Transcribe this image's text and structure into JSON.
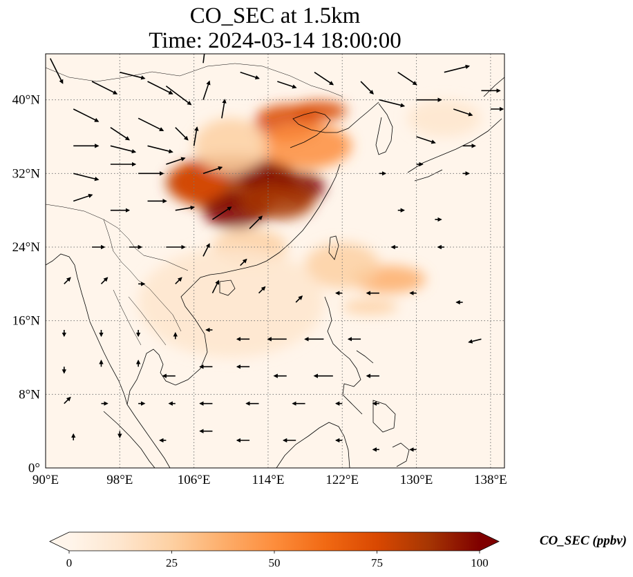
{
  "title": {
    "line1": "CO_SEC at 1.5km",
    "line2": "Time: 2024-03-14 18:00:00"
  },
  "map": {
    "lon_range": [
      90,
      139.5
    ],
    "lat_range": [
      0,
      45
    ],
    "lon_ticks": [
      {
        "value": 90,
        "label": "90°E"
      },
      {
        "value": 98,
        "label": "98°E"
      },
      {
        "value": 106,
        "label": "106°E"
      },
      {
        "value": 114,
        "label": "114°E"
      },
      {
        "value": 122,
        "label": "122°E"
      },
      {
        "value": 130,
        "label": "130°E"
      },
      {
        "value": 138,
        "label": "138°E"
      }
    ],
    "lat_ticks": [
      {
        "value": 0,
        "label": "0°"
      },
      {
        "value": 8,
        "label": "8°N"
      },
      {
        "value": 16,
        "label": "16°N"
      },
      {
        "value": 24,
        "label": "24°N"
      },
      {
        "value": 32,
        "label": "32°N"
      },
      {
        "value": 40,
        "label": "40°N"
      }
    ],
    "gridlines": "dotted",
    "field": "CO_SEC",
    "units": "ppbv"
  },
  "colorbar": {
    "title": "CO_SEC (ppbv)",
    "ticks": [
      {
        "value": 0,
        "label": "0"
      },
      {
        "value": 25,
        "label": "25"
      },
      {
        "value": 50,
        "label": "50"
      },
      {
        "value": 75,
        "label": "75"
      },
      {
        "value": 100,
        "label": "100"
      }
    ],
    "range": [
      0,
      100
    ],
    "extend": "both",
    "colors": [
      "#fff5eb",
      "#fee6ce",
      "#fdd0a2",
      "#fdae6b",
      "#fd8d3c",
      "#f16913",
      "#d94801",
      "#a63603",
      "#7f0000"
    ]
  },
  "plumes": [
    {
      "lon": 110,
      "lat": 31,
      "rx": 7,
      "ry": 3,
      "value": 90
    },
    {
      "lon": 114,
      "lat": 31.5,
      "rx": 3,
      "ry": 1.8,
      "value": 100
    },
    {
      "lon": 117.5,
      "lat": 30.5,
      "rx": 2.6,
      "ry": 1.6,
      "value": 100
    },
    {
      "lon": 110.5,
      "lat": 28,
      "rx": 3.5,
      "ry": 2,
      "value": 95
    },
    {
      "lon": 115,
      "lat": 29,
      "rx": 4,
      "ry": 2,
      "value": 85
    },
    {
      "lon": 106.5,
      "lat": 31,
      "rx": 3,
      "ry": 2.2,
      "value": 75
    },
    {
      "lon": 116,
      "lat": 37.5,
      "rx": 3.5,
      "ry": 2,
      "value": 80
    },
    {
      "lon": 119.5,
      "lat": 38.8,
      "rx": 3,
      "ry": 1.1,
      "value": 75
    },
    {
      "lon": 118,
      "lat": 35,
      "rx": 5,
      "ry": 2.5,
      "value": 45
    },
    {
      "lon": 110,
      "lat": 35,
      "rx": 4,
      "ry": 3,
      "value": 30
    },
    {
      "lon": 112,
      "lat": 24,
      "rx": 4,
      "ry": 2,
      "value": 30
    },
    {
      "lon": 127,
      "lat": 20.5,
      "rx": 4,
      "ry": 1.5,
      "value": 40
    },
    {
      "lon": 122,
      "lat": 22,
      "rx": 4,
      "ry": 2.5,
      "value": 22
    },
    {
      "lon": 125,
      "lat": 17.5,
      "rx": 3,
      "ry": 0.8,
      "value": 30
    },
    {
      "lon": 133,
      "lat": 38,
      "rx": 4,
      "ry": 2,
      "value": 12
    },
    {
      "lon": 110,
      "lat": 18,
      "rx": 10,
      "ry": 6,
      "value": 8
    }
  ],
  "wind_vectors": [
    {
      "lon": 90.5,
      "lat": 44.5,
      "u": 2,
      "v": -4
    },
    {
      "lon": 95,
      "lat": 42,
      "u": 4,
      "v": -2
    },
    {
      "lon": 98,
      "lat": 43,
      "u": 4,
      "v": -1
    },
    {
      "lon": 101,
      "lat": 42,
      "u": 4,
      "v": -2
    },
    {
      "lon": 103,
      "lat": 41.5,
      "u": 4,
      "v": -3
    },
    {
      "lon": 107,
      "lat": 44,
      "u": 0.5,
      "v": 4
    },
    {
      "lon": 111,
      "lat": 43,
      "u": 3,
      "v": -1
    },
    {
      "lon": 115,
      "lat": 42,
      "u": 3,
      "v": -1
    },
    {
      "lon": 119,
      "lat": 43,
      "u": 3,
      "v": -2
    },
    {
      "lon": 124,
      "lat": 42,
      "u": 2,
      "v": -2
    },
    {
      "lon": 128,
      "lat": 43,
      "u": 3,
      "v": -2
    },
    {
      "lon": 133,
      "lat": 43,
      "u": 4,
      "v": 1
    },
    {
      "lon": 137,
      "lat": 41,
      "u": 3,
      "v": 0
    },
    {
      "lon": 93,
      "lat": 39,
      "u": 4,
      "v": -2
    },
    {
      "lon": 97,
      "lat": 37,
      "u": 3,
      "v": -2
    },
    {
      "lon": 100,
      "lat": 38,
      "u": 4,
      "v": -2
    },
    {
      "lon": 104,
      "lat": 37,
      "u": 2,
      "v": -2
    },
    {
      "lon": 107,
      "lat": 40,
      "u": 1,
      "v": 3
    },
    {
      "lon": 109,
      "lat": 38,
      "u": 0.5,
      "v": 3
    },
    {
      "lon": 126,
      "lat": 40,
      "u": 4,
      "v": -1
    },
    {
      "lon": 130,
      "lat": 40,
      "u": 4,
      "v": 0
    },
    {
      "lon": 134,
      "lat": 39,
      "u": 3,
      "v": -1
    },
    {
      "lon": 138,
      "lat": 39,
      "u": 2,
      "v": 0
    },
    {
      "lon": 93,
      "lat": 35,
      "u": 4,
      "v": 0
    },
    {
      "lon": 97,
      "lat": 35,
      "u": 4,
      "v": -1
    },
    {
      "lon": 101,
      "lat": 35,
      "u": 4,
      "v": -1
    },
    {
      "lon": 106,
      "lat": 35,
      "u": 0.5,
      "v": 3
    },
    {
      "lon": 130,
      "lat": 36,
      "u": 3,
      "v": -1
    },
    {
      "lon": 135,
      "lat": 35,
      "u": 2,
      "v": 0
    },
    {
      "lon": 93,
      "lat": 32,
      "u": 4,
      "v": -1
    },
    {
      "lon": 97,
      "lat": 33,
      "u": 4,
      "v": 0
    },
    {
      "lon": 100,
      "lat": 32,
      "u": 4,
      "v": 0
    },
    {
      "lon": 103,
      "lat": 33,
      "u": 3,
      "v": 1
    },
    {
      "lon": 107,
      "lat": 32,
      "u": 3,
      "v": 1
    },
    {
      "lon": 126,
      "lat": 32,
      "u": 1,
      "v": 0
    },
    {
      "lon": 130,
      "lat": 33,
      "u": 1,
      "v": 0
    },
    {
      "lon": 135,
      "lat": 32,
      "u": 1,
      "v": 0
    },
    {
      "lon": 93,
      "lat": 29,
      "u": 3,
      "v": 1
    },
    {
      "lon": 97,
      "lat": 28,
      "u": 3,
      "v": 0
    },
    {
      "lon": 101,
      "lat": 29,
      "u": 3,
      "v": 0
    },
    {
      "lon": 104,
      "lat": 28,
      "u": 3,
      "v": 0.5
    },
    {
      "lon": 108,
      "lat": 27,
      "u": 3,
      "v": 2
    },
    {
      "lon": 112,
      "lat": 26,
      "u": 2,
      "v": 2
    },
    {
      "lon": 128,
      "lat": 28,
      "u": 1,
      "v": 0
    },
    {
      "lon": 132,
      "lat": 27,
      "u": 1,
      "v": 0
    },
    {
      "lon": 95,
      "lat": 24,
      "u": 2,
      "v": 0
    },
    {
      "lon": 99,
      "lat": 24,
      "u": 2,
      "v": 0
    },
    {
      "lon": 103,
      "lat": 24,
      "u": 3,
      "v": 0
    },
    {
      "lon": 107,
      "lat": 23,
      "u": 1,
      "v": 2
    },
    {
      "lon": 111,
      "lat": 22,
      "u": 1,
      "v": 1
    },
    {
      "lon": 128,
      "lat": 24,
      "u": -1,
      "v": 0
    },
    {
      "lon": 133,
      "lat": 24,
      "u": -1,
      "v": 0
    },
    {
      "lon": 92,
      "lat": 20,
      "u": 1,
      "v": 1
    },
    {
      "lon": 96,
      "lat": 20,
      "u": 1,
      "v": 1
    },
    {
      "lon": 100,
      "lat": 20,
      "u": 1,
      "v": 0
    },
    {
      "lon": 104,
      "lat": 20,
      "u": 1,
      "v": 1
    },
    {
      "lon": 108,
      "lat": 19,
      "u": 1,
      "v": 2
    },
    {
      "lon": 113,
      "lat": 19,
      "u": 1,
      "v": 1
    },
    {
      "lon": 117,
      "lat": 18,
      "u": 1,
      "v": 1
    },
    {
      "lon": 122,
      "lat": 19,
      "u": -1,
      "v": 0
    },
    {
      "lon": 126,
      "lat": 19,
      "u": -2,
      "v": 0
    },
    {
      "lon": 130,
      "lat": 19,
      "u": -1,
      "v": 0
    },
    {
      "lon": 135,
      "lat": 18,
      "u": -1,
      "v": 0
    },
    {
      "lon": 92,
      "lat": 15,
      "u": 0,
      "v": -1
    },
    {
      "lon": 96,
      "lat": 15,
      "u": 0,
      "v": -1
    },
    {
      "lon": 100,
      "lat": 15,
      "u": 0,
      "v": -1
    },
    {
      "lon": 104,
      "lat": 14,
      "u": 0,
      "v": 1
    },
    {
      "lon": 108,
      "lat": 15,
      "u": -1,
      "v": 0
    },
    {
      "lon": 112,
      "lat": 14,
      "u": -2,
      "v": 0
    },
    {
      "lon": 116,
      "lat": 14,
      "u": -3,
      "v": 0
    },
    {
      "lon": 120,
      "lat": 14,
      "u": -3,
      "v": 0
    },
    {
      "lon": 124,
      "lat": 14,
      "u": -2,
      "v": 0
    },
    {
      "lon": 137,
      "lat": 14,
      "u": -2,
      "v": -0.5
    },
    {
      "lon": 92,
      "lat": 11,
      "u": 0,
      "v": -1
    },
    {
      "lon": 96,
      "lat": 11,
      "u": 0,
      "v": 1
    },
    {
      "lon": 100,
      "lat": 11,
      "u": 0,
      "v": 1
    },
    {
      "lon": 104,
      "lat": 10,
      "u": -2,
      "v": 0
    },
    {
      "lon": 108,
      "lat": 11,
      "u": -2,
      "v": 0
    },
    {
      "lon": 112,
      "lat": 11,
      "u": -2,
      "v": 0
    },
    {
      "lon": 116,
      "lat": 10,
      "u": -2,
      "v": 0
    },
    {
      "lon": 121,
      "lat": 10,
      "u": -3,
      "v": 0
    },
    {
      "lon": 126,
      "lat": 10,
      "u": -2,
      "v": 0
    },
    {
      "lon": 92,
      "lat": 7,
      "u": 1,
      "v": 1
    },
    {
      "lon": 96,
      "lat": 7,
      "u": 1,
      "v": 0
    },
    {
      "lon": 100,
      "lat": 7,
      "u": 1,
      "v": 0
    },
    {
      "lon": 104,
      "lat": 7,
      "u": -1,
      "v": 0
    },
    {
      "lon": 108,
      "lat": 7,
      "u": -2,
      "v": 0
    },
    {
      "lon": 113,
      "lat": 7,
      "u": -2,
      "v": 0
    },
    {
      "lon": 118,
      "lat": 7,
      "u": -2,
      "v": 0
    },
    {
      "lon": 122,
      "lat": 7,
      "u": -1,
      "v": 0
    },
    {
      "lon": 126,
      "lat": 7,
      "u": -1,
      "v": 0
    },
    {
      "lon": 93,
      "lat": 3,
      "u": 0,
      "v": 1
    },
    {
      "lon": 98,
      "lat": 4,
      "u": 0,
      "v": -1
    },
    {
      "lon": 103,
      "lat": 3,
      "u": -1,
      "v": 0
    },
    {
      "lon": 108,
      "lat": 4,
      "u": -2,
      "v": 0
    },
    {
      "lon": 112,
      "lat": 3,
      "u": -2,
      "v": 0
    },
    {
      "lon": 117,
      "lat": 3,
      "u": -2,
      "v": 0
    },
    {
      "lon": 122,
      "lat": 3,
      "u": -1,
      "v": 0
    },
    {
      "lon": 126,
      "lat": 2,
      "u": -1,
      "v": 0
    },
    {
      "lon": 130,
      "lat": 2,
      "u": -1,
      "v": 0
    }
  ]
}
